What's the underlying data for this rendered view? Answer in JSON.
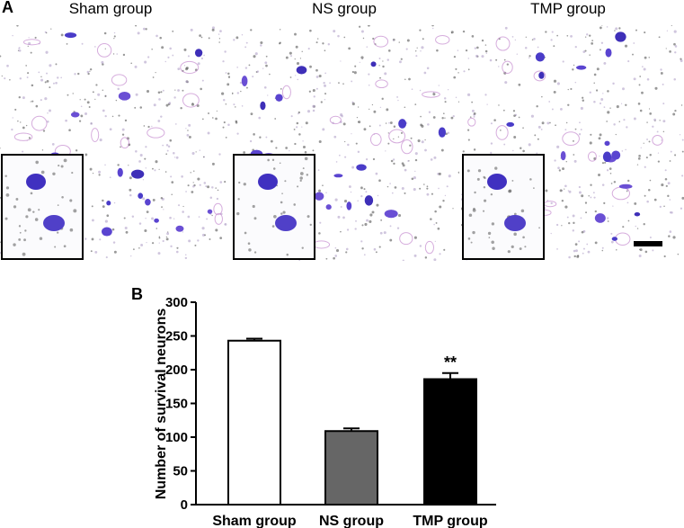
{
  "panel_a": {
    "letter": "A",
    "images": [
      {
        "title": "Sham group"
      },
      {
        "title": "NS group"
      },
      {
        "title": "TMP group"
      }
    ]
  },
  "panel_b": {
    "letter": "B"
  },
  "chart_data": {
    "type": "bar",
    "categories": [
      "Sham group",
      "NS group",
      "TMP group"
    ],
    "values": [
      243,
      109,
      186
    ],
    "errors": [
      3,
      4,
      9
    ],
    "bar_colors": [
      "#ffffff",
      "#666666",
      "#000000"
    ],
    "annotations": [
      "",
      "",
      "**"
    ],
    "ylabel": "Number of survival neurons",
    "ylim": [
      0,
      300
    ],
    "yticks": [
      0,
      50,
      100,
      150,
      200,
      250,
      300
    ],
    "grid": false
  }
}
